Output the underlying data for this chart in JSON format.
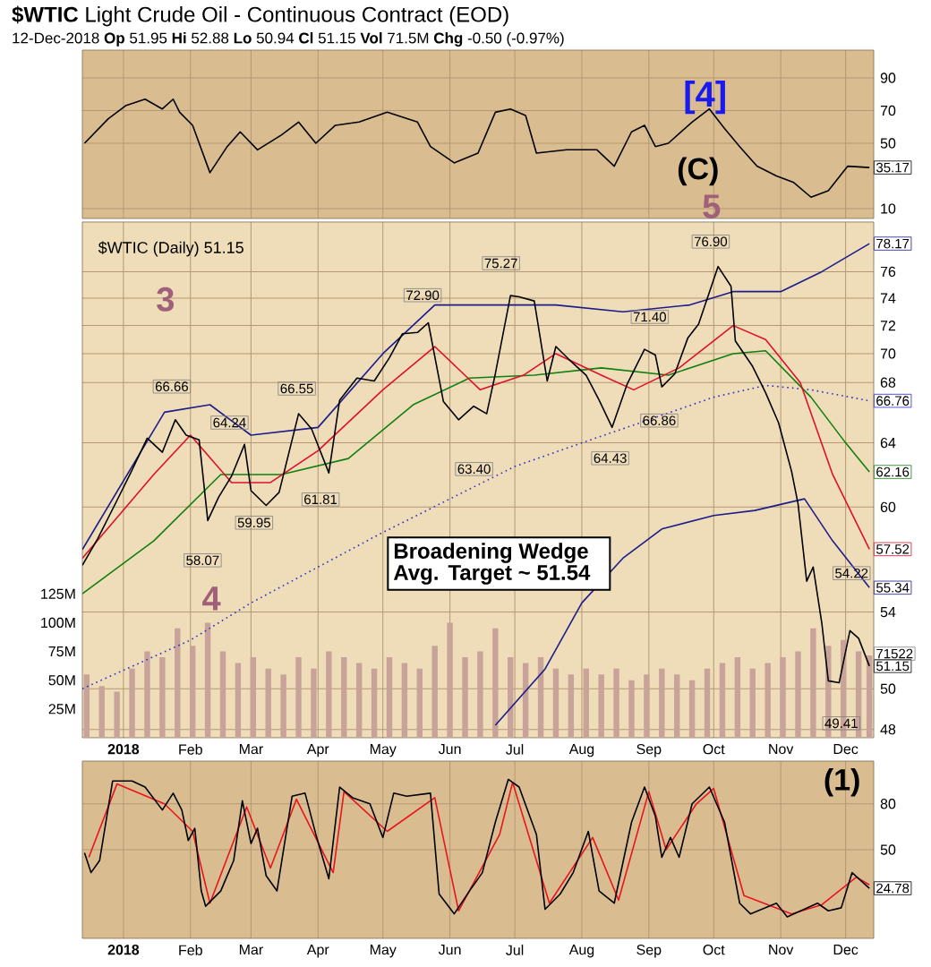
{
  "chart_data": [
    {
      "type": "line",
      "title": "**$WTIC** Light Crude Oil - Continuous Contract (EOD)",
      "subtitle": "12-Dec-2018     **Op** 51.95  **Hi** 52.88  **Lo** 50.94  **Cl** 51.15  **Vol** 71.5M  **Chg** -0.50 (-0.97%)",
      "xlim": [
        "2017-12-13",
        "2018-12-14"
      ],
      "ylim": [
        4,
        107
      ],
      "yticks": [
        10,
        50,
        70,
        90
      ],
      "grid": true,
      "tick_labels": "y",
      "xticks": [
        {
          "value": "2018-01-01",
          "label": null
        },
        {
          "value": "2018-02-01",
          "label": null
        },
        {
          "value": "2018-03-01",
          "label": null
        },
        {
          "value": "2018-04-01",
          "label": null
        },
        {
          "value": "2018-05-01",
          "label": null
        },
        {
          "value": "2018-06-01",
          "label": null
        },
        {
          "value": "2018-07-01",
          "label": null
        },
        {
          "value": "2018-08-01",
          "label": null
        },
        {
          "value": "2018-09-01",
          "label": null
        },
        {
          "value": "2018-10-01",
          "label": null
        },
        {
          "value": "2018-11-01",
          "label": null
        },
        {
          "value": "2018-12-01",
          "label": null
        }
      ],
      "annotations": [
        "[4]",
        "(C)"
      ],
      "series": [
        {
          "color": "#000000",
          "x": [
            "2017-12-14",
            "2017-12-25",
            "2018-01-02",
            "2018-01-11",
            "2018-01-19",
            "2018-01-24",
            "2018-01-27",
            "2018-02-02",
            "2018-02-10",
            "2018-02-18",
            "2018-02-24",
            "2018-03-04",
            "2018-03-15",
            "2018-03-23",
            "2018-03-31",
            "2018-04-09",
            "2018-04-20",
            "2018-05-03",
            "2018-05-17",
            "2018-05-23",
            "2018-06-03",
            "2018-06-14",
            "2018-06-22",
            "2018-06-29",
            "2018-07-06",
            "2018-07-11",
            "2018-07-25",
            "2018-08-08",
            "2018-08-16",
            "2018-08-24",
            "2018-08-30",
            "2018-09-04",
            "2018-09-10",
            "2018-09-21",
            "2018-09-29",
            "2018-10-06",
            "2018-10-13",
            "2018-10-21",
            "2018-10-30",
            "2018-11-07",
            "2018-11-15",
            "2018-11-23",
            "2018-12-02",
            "2018-12-12"
          ],
          "values": [
            50,
            65,
            73,
            77,
            71,
            77,
            69,
            61,
            32,
            48,
            57,
            46,
            55,
            63,
            50,
            61,
            63,
            69,
            63,
            48,
            38,
            44,
            69,
            71,
            67,
            44,
            46,
            46,
            36,
            57,
            61,
            48,
            50,
            63,
            71,
            59,
            48,
            36,
            30,
            26,
            17,
            21,
            36,
            35.17
          ],
          "value_labels": [
            null,
            null,
            null,
            null,
            null,
            null,
            null,
            null,
            null,
            null,
            null,
            null,
            null,
            null,
            null,
            null,
            null,
            null,
            null,
            null,
            null,
            null,
            null,
            null,
            null,
            null,
            null,
            null,
            null,
            null,
            null,
            null,
            null,
            null,
            null,
            null,
            null,
            null,
            null,
            null,
            null,
            null,
            null,
            "35.17"
          ]
        }
      ]
    },
    {
      "type": "line",
      "log": "y",
      "xlim": [
        "2017-12-13",
        "2018-12-14"
      ],
      "ylim": [
        47.6,
        79.9
      ],
      "yticks": [
        48,
        50,
        54,
        60,
        64,
        68,
        70,
        72,
        74,
        76
      ],
      "grid": true,
      "y2lim": [
        0,
        448
      ],
      "y2ticks": [
        {
          "value": 25,
          "label": "25M"
        },
        {
          "value": 50,
          "label": "50M"
        },
        {
          "value": 75,
          "label": "75M"
        },
        {
          "value": 100,
          "label": "100M"
        },
        {
          "value": 125,
          "label": "125M"
        }
      ],
      "xticks": [
        {
          "value": "2018-01-01",
          "label": "**2018**"
        },
        {
          "value": "2018-02-01",
          "label": "Feb"
        },
        {
          "value": "2018-03-01",
          "label": "Mar"
        },
        {
          "value": "2018-04-01",
          "label": "Apr"
        },
        {
          "value": "2018-05-01",
          "label": "May"
        },
        {
          "value": "2018-06-01",
          "label": "Jun"
        },
        {
          "value": "2018-07-01",
          "label": "Jul"
        },
        {
          "value": "2018-08-01",
          "label": "Aug"
        },
        {
          "value": "2018-09-01",
          "label": "Sep"
        },
        {
          "value": "2018-10-01",
          "label": "Oct"
        },
        {
          "value": "2018-11-01",
          "label": "Nov"
        },
        {
          "value": "2018-12-01",
          "label": "Dec"
        }
      ],
      "annotations": [
        "$WTIC (Daily) 51.15",
        "Broadening Wedge Avg. Target ~ 51.54",
        "3",
        "4",
        "5",
        "66.66",
        "58.07",
        "64.24",
        "59.95",
        "66.55",
        "61.81",
        "72.90",
        "63.40",
        "75.27",
        "64.43",
        "71.40",
        "66.86",
        "76.90",
        "49.41",
        "54.22",
        "71522"
      ],
      "series": [
        {
          "type": "bar",
          "axis": "y2",
          "color": "#c8a39a",
          "x": [
            "2017-12-15",
            "2017-12-22",
            "2017-12-29",
            "2018-01-05",
            "2018-01-12",
            "2018-01-19",
            "2018-01-26",
            "2018-02-02",
            "2018-02-09",
            "2018-02-16",
            "2018-02-23",
            "2018-03-02",
            "2018-03-09",
            "2018-03-16",
            "2018-03-23",
            "2018-03-30",
            "2018-04-06",
            "2018-04-13",
            "2018-04-20",
            "2018-04-27",
            "2018-05-04",
            "2018-05-11",
            "2018-05-18",
            "2018-05-25",
            "2018-06-01",
            "2018-06-08",
            "2018-06-15",
            "2018-06-22",
            "2018-06-29",
            "2018-07-06",
            "2018-07-13",
            "2018-07-20",
            "2018-07-27",
            "2018-08-03",
            "2018-08-10",
            "2018-08-17",
            "2018-08-24",
            "2018-08-31",
            "2018-09-07",
            "2018-09-14",
            "2018-09-21",
            "2018-09-28",
            "2018-10-05",
            "2018-10-12",
            "2018-10-19",
            "2018-10-26",
            "2018-11-02",
            "2018-11-09",
            "2018-11-16",
            "2018-11-23",
            "2018-11-30",
            "2018-12-07",
            "2018-12-12"
          ],
          "values": [
            55,
            45,
            40,
            60,
            75,
            70,
            95,
            80,
            100,
            75,
            65,
            70,
            60,
            55,
            70,
            60,
            75,
            70,
            65,
            60,
            70,
            65,
            60,
            80,
            100,
            70,
            75,
            95,
            70,
            65,
            70,
            60,
            55,
            60,
            55,
            60,
            50,
            55,
            60,
            55,
            50,
            60,
            65,
            70,
            60,
            65,
            70,
            75,
            95,
            80,
            85,
            75,
            71.5
          ]
        },
        {
          "color": "#1c1c8c",
          "x": [
            "2017-12-13",
            "2018-01-20",
            "2018-02-10",
            "2018-03-01",
            "2018-04-01",
            "2018-05-01",
            "2018-05-25",
            "2018-06-20",
            "2018-07-20",
            "2018-08-20",
            "2018-09-20",
            "2018-10-10",
            "2018-11-01",
            "2018-11-20",
            "2018-12-12"
          ],
          "values": [
            57.5,
            66,
            66.5,
            64.5,
            65,
            70,
            73.5,
            73.5,
            73.5,
            73,
            73.5,
            74.5,
            74.5,
            76,
            78.17
          ],
          "value_labels": [
            null,
            null,
            null,
            null,
            null,
            null,
            null,
            null,
            null,
            null,
            null,
            null,
            null,
            null,
            "78.17"
          ]
        },
        {
          "color": "#1c1c8c",
          "x": [
            "2018-06-22",
            "2018-07-15",
            "2018-08-01",
            "2018-08-20",
            "2018-09-07",
            "2018-10-01",
            "2018-10-20",
            "2018-11-12",
            "2018-11-25",
            "2018-12-12"
          ],
          "values": [
            48.2,
            51,
            54.5,
            57,
            58.7,
            59.5,
            59.8,
            60.5,
            58,
            55.34
          ],
          "value_labels": [
            null,
            null,
            null,
            null,
            null,
            null,
            null,
            null,
            null,
            "55.34"
          ]
        },
        {
          "color": "#2a2ad0",
          "line_style": "dotted",
          "x": [
            "2017-12-13",
            "2018-02-01",
            "2018-03-01",
            "2018-04-01",
            "2018-05-01",
            "2018-06-01",
            "2018-07-01",
            "2018-08-01",
            "2018-09-01",
            "2018-10-01",
            "2018-10-25",
            "2018-11-15",
            "2018-12-12"
          ],
          "values": [
            50,
            52.5,
            54.5,
            56.5,
            58.5,
            60.5,
            62.5,
            64,
            65.5,
            67,
            67.8,
            67.5,
            66.76
          ],
          "value_labels": [
            null,
            null,
            null,
            null,
            null,
            null,
            null,
            null,
            null,
            null,
            null,
            null,
            "66.76"
          ]
        },
        {
          "color": "#108010",
          "x": [
            "2017-12-13",
            "2018-01-15",
            "2018-02-15",
            "2018-03-15",
            "2018-04-15",
            "2018-05-15",
            "2018-06-10",
            "2018-07-10",
            "2018-08-10",
            "2018-09-10",
            "2018-10-10",
            "2018-10-25",
            "2018-11-15",
            "2018-12-01",
            "2018-12-12"
          ],
          "values": [
            55,
            58,
            62,
            62,
            63,
            66.5,
            68.3,
            68.5,
            69,
            68.5,
            70,
            70.2,
            67,
            64,
            62.16
          ],
          "value_labels": [
            null,
            null,
            null,
            null,
            null,
            null,
            null,
            null,
            null,
            null,
            null,
            null,
            null,
            null,
            "62.16"
          ]
        },
        {
          "color": "#e0102a",
          "x": [
            "2017-12-13",
            "2018-01-15",
            "2018-02-01",
            "2018-02-20",
            "2018-03-10",
            "2018-04-01",
            "2018-05-01",
            "2018-05-25",
            "2018-06-15",
            "2018-07-05",
            "2018-07-20",
            "2018-08-10",
            "2018-08-25",
            "2018-09-15",
            "2018-10-10",
            "2018-10-25",
            "2018-11-10",
            "2018-11-25",
            "2018-12-12"
          ],
          "values": [
            57,
            62,
            64.5,
            61.5,
            61.5,
            63.5,
            67.5,
            70.5,
            67.5,
            68.5,
            70,
            68.5,
            67.5,
            69,
            72,
            71,
            68,
            62,
            57.52
          ],
          "value_labels": [
            null,
            null,
            null,
            null,
            null,
            null,
            null,
            null,
            null,
            null,
            null,
            null,
            null,
            null,
            null,
            null,
            null,
            null,
            "57.52"
          ]
        },
        {
          "color": "#000000",
          "x": [
            "2017-12-13",
            "2017-12-20",
            "2017-12-29",
            "2018-01-04",
            "2018-01-12",
            "2018-01-19",
            "2018-01-25",
            "2018-01-30",
            "2018-02-05",
            "2018-02-09",
            "2018-02-14",
            "2018-02-20",
            "2018-02-26",
            "2018-03-01",
            "2018-03-08",
            "2018-03-14",
            "2018-03-23",
            "2018-03-29",
            "2018-04-06",
            "2018-04-11",
            "2018-04-19",
            "2018-04-27",
            "2018-05-04",
            "2018-05-10",
            "2018-05-17",
            "2018-05-22",
            "2018-05-29",
            "2018-06-05",
            "2018-06-12",
            "2018-06-18",
            "2018-06-22",
            "2018-06-29",
            "2018-07-03",
            "2018-07-10",
            "2018-07-16",
            "2018-07-20",
            "2018-07-26",
            "2018-08-03",
            "2018-08-09",
            "2018-08-15",
            "2018-08-22",
            "2018-08-30",
            "2018-09-04",
            "2018-09-07",
            "2018-09-13",
            "2018-09-19",
            "2018-09-24",
            "2018-10-03",
            "2018-10-09",
            "2018-10-11",
            "2018-10-19",
            "2018-10-25",
            "2018-10-31",
            "2018-11-06",
            "2018-11-09",
            "2018-11-13",
            "2018-11-16",
            "2018-11-20",
            "2018-11-23",
            "2018-11-28",
            "2018-12-03",
            "2018-12-07",
            "2018-12-12"
          ],
          "values": [
            56.6,
            58.1,
            60.4,
            62.0,
            64.3,
            63.4,
            65.5,
            64.5,
            64.2,
            59.2,
            60.6,
            61.9,
            63.9,
            61.0,
            60.1,
            60.9,
            65.9,
            64.9,
            62.1,
            66.8,
            68.3,
            68.1,
            69.7,
            71.4,
            71.5,
            72.2,
            66.7,
            65.5,
            66.4,
            65.9,
            68.6,
            74.2,
            74.1,
            73.8,
            68.1,
            70.5,
            69.6,
            68.5,
            66.8,
            65.0,
            67.9,
            70.3,
            69.9,
            67.7,
            68.6,
            71.1,
            72.1,
            76.4,
            74.9,
            70.9,
            69.1,
            67.3,
            65.3,
            62.2,
            60.2,
            55.7,
            56.5,
            53.4,
            50.4,
            50.3,
            53.0,
            52.6,
            51.15
          ],
          "value_labels": [
            null,
            null,
            null,
            null,
            null,
            null,
            null,
            null,
            null,
            null,
            null,
            null,
            null,
            null,
            null,
            null,
            null,
            null,
            null,
            null,
            null,
            null,
            null,
            null,
            null,
            null,
            null,
            null,
            null,
            null,
            null,
            null,
            null,
            null,
            null,
            null,
            null,
            null,
            null,
            null,
            null,
            null,
            null,
            null,
            null,
            null,
            null,
            null,
            null,
            null,
            null,
            null,
            null,
            null,
            null,
            null,
            null,
            null,
            null,
            null,
            null,
            null,
            "51.15"
          ]
        }
      ]
    },
    {
      "type": "line",
      "xlim": [
        "2017-12-13",
        "2018-12-14"
      ],
      "ylim": [
        -8,
        108
      ],
      "yticks": [
        50,
        80
      ],
      "grid": true,
      "xticks": [
        {
          "value": "2018-01-01",
          "label": "**2018**"
        },
        {
          "value": "2018-02-01",
          "label": "Feb"
        },
        {
          "value": "2018-03-01",
          "label": "Mar"
        },
        {
          "value": "2018-04-01",
          "label": "Apr"
        },
        {
          "value": "2018-05-01",
          "label": "May"
        },
        {
          "value": "2018-06-01",
          "label": "Jun"
        },
        {
          "value": "2018-07-01",
          "label": "Jul"
        },
        {
          "value": "2018-08-01",
          "label": "Aug"
        },
        {
          "value": "2018-09-01",
          "label": "Sep"
        },
        {
          "value": "2018-10-01",
          "label": "Oct"
        },
        {
          "value": "2018-11-01",
          "label": "Nov"
        },
        {
          "value": "2018-12-01",
          "label": "Dec"
        }
      ],
      "annotations": [
        "(1)"
      ],
      "series": [
        {
          "color": "#e8141e",
          "x": [
            "2017-12-16",
            "2017-12-29",
            "2018-01-20",
            "2018-02-02",
            "2018-02-10",
            "2018-02-27",
            "2018-03-10",
            "2018-03-22",
            "2018-04-08",
            "2018-04-13",
            "2018-05-03",
            "2018-05-25",
            "2018-06-05",
            "2018-06-24",
            "2018-06-30",
            "2018-07-17",
            "2018-08-06",
            "2018-08-18",
            "2018-09-01",
            "2018-09-09",
            "2018-09-23",
            "2018-10-01",
            "2018-10-15",
            "2018-11-06",
            "2018-11-20",
            "2018-12-06",
            "2018-12-12"
          ],
          "values": [
            45,
            93,
            80,
            62,
            15,
            78,
            38,
            83,
            35,
            88,
            62,
            84,
            10,
            60,
            94,
            15,
            58,
            17,
            88,
            50,
            80,
            90,
            20,
            8,
            14,
            32,
            27
          ]
        },
        {
          "color": "#000000",
          "x": [
            "2017-12-14",
            "2017-12-17",
            "2017-12-21",
            "2017-12-27",
            "2018-01-05",
            "2018-01-11",
            "2018-01-19",
            "2018-01-24",
            "2018-01-28",
            "2018-01-31",
            "2018-02-03",
            "2018-02-06",
            "2018-02-08",
            "2018-02-15",
            "2018-02-21",
            "2018-02-25",
            "2018-03-01",
            "2018-03-04",
            "2018-03-08",
            "2018-03-13",
            "2018-03-20",
            "2018-03-26",
            "2018-03-31",
            "2018-04-06",
            "2018-04-11",
            "2018-04-17",
            "2018-04-25",
            "2018-05-01",
            "2018-05-06",
            "2018-05-12",
            "2018-05-23",
            "2018-05-27",
            "2018-06-03",
            "2018-06-11",
            "2018-06-16",
            "2018-06-22",
            "2018-06-28",
            "2018-07-03",
            "2018-07-11",
            "2018-07-15",
            "2018-07-22",
            "2018-07-28",
            "2018-08-04",
            "2018-08-09",
            "2018-08-16",
            "2018-08-24",
            "2018-08-30",
            "2018-09-04",
            "2018-09-07",
            "2018-09-11",
            "2018-09-15",
            "2018-09-21",
            "2018-09-29",
            "2018-10-06",
            "2018-10-13",
            "2018-10-18",
            "2018-10-30",
            "2018-11-04",
            "2018-11-18",
            "2018-11-23",
            "2018-11-29",
            "2018-12-04",
            "2018-12-12"
          ],
          "values": [
            48,
            35,
            43,
            95,
            95,
            91,
            76,
            87,
            76,
            56,
            64,
            23,
            13,
            23,
            43,
            82,
            54,
            64,
            33,
            23,
            85,
            87,
            60,
            31,
            91,
            84,
            80,
            58,
            87,
            85,
            87,
            21,
            8,
            25,
            35,
            68,
            96,
            91,
            60,
            11,
            21,
            35,
            62,
            23,
            15,
            68,
            91,
            72,
            45,
            58,
            45,
            80,
            91,
            68,
            15,
            8,
            15,
            6,
            15,
            10,
            12,
            35,
            24.78
          ],
          "value_labels": [
            null,
            null,
            null,
            null,
            null,
            null,
            null,
            null,
            null,
            null,
            null,
            null,
            null,
            null,
            null,
            null,
            null,
            null,
            null,
            null,
            null,
            null,
            null,
            null,
            null,
            null,
            null,
            null,
            null,
            null,
            null,
            null,
            null,
            null,
            null,
            null,
            null,
            null,
            null,
            null,
            null,
            null,
            null,
            null,
            null,
            null,
            null,
            null,
            null,
            null,
            null,
            null,
            null,
            null,
            null,
            null,
            null,
            null,
            null,
            null,
            null,
            null,
            "24.78"
          ]
        }
      ]
    }
  ]
}
